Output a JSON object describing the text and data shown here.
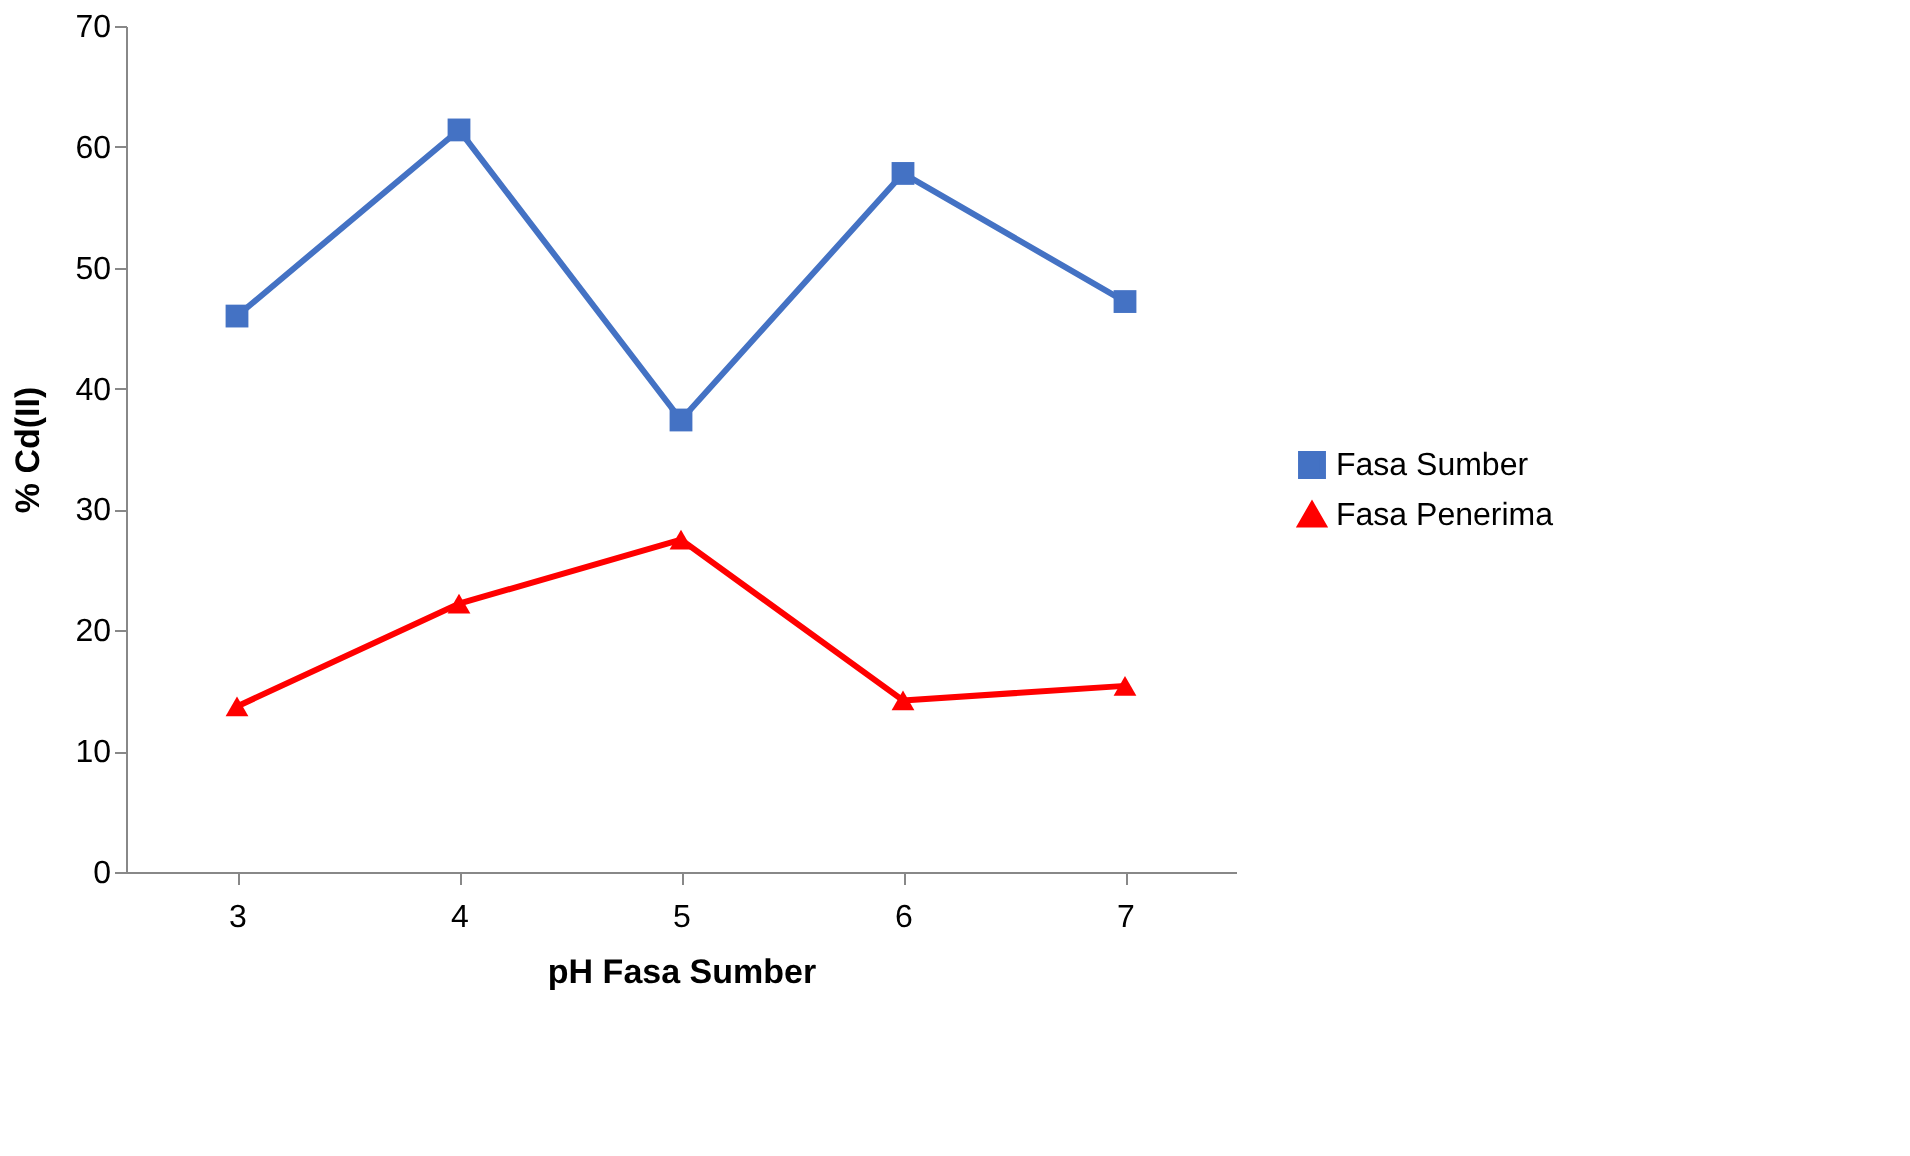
{
  "chart_data": {
    "type": "line",
    "xlabel": "pH Fasa Sumber",
    "ylabel": "% Cd(II)",
    "categories": [
      "3",
      "4",
      "5",
      "6",
      "7"
    ],
    "series": [
      {
        "name": "Fasa Sumber",
        "color": "#4472c4",
        "marker": "square",
        "values": [
          46.0,
          61.4,
          37.4,
          57.8,
          47.2
        ]
      },
      {
        "name": "Fasa Penerima",
        "color": "#ff0000",
        "marker": "triangle",
        "values": [
          13.7,
          22.2,
          27.5,
          14.2,
          15.4
        ]
      }
    ],
    "ylim": [
      0,
      70
    ],
    "yticks": [
      0,
      10,
      20,
      30,
      40,
      50,
      60,
      70
    ],
    "grid": false,
    "legend": "right",
    "line_style": "solid"
  }
}
